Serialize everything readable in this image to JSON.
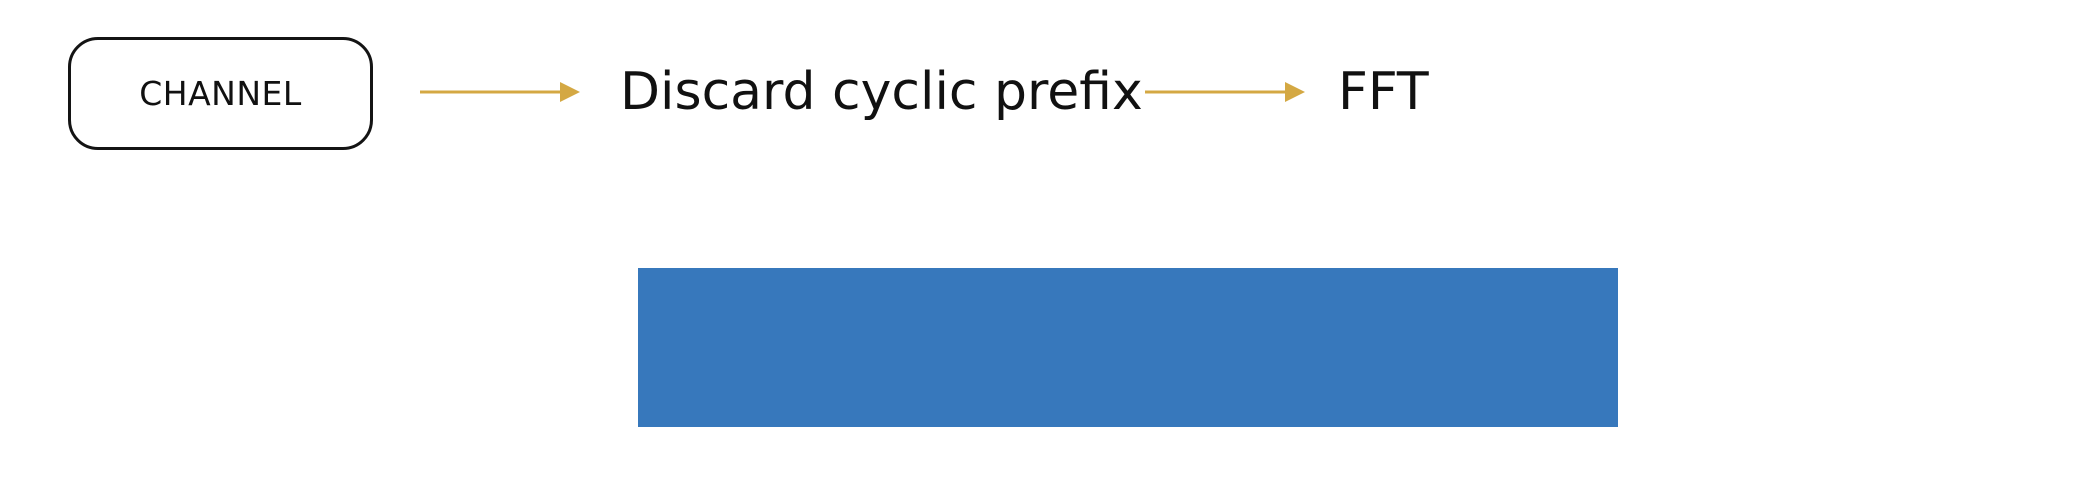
{
  "diagram": {
    "channel": {
      "label": "CHANNEL"
    },
    "steps": [
      {
        "label": "Discard cyclic prefix"
      },
      {
        "label": "FFT"
      }
    ],
    "colors": {
      "arrow": "#D4A843",
      "block": "#3778BC",
      "box_border": "#141414",
      "text": "#111111"
    }
  }
}
